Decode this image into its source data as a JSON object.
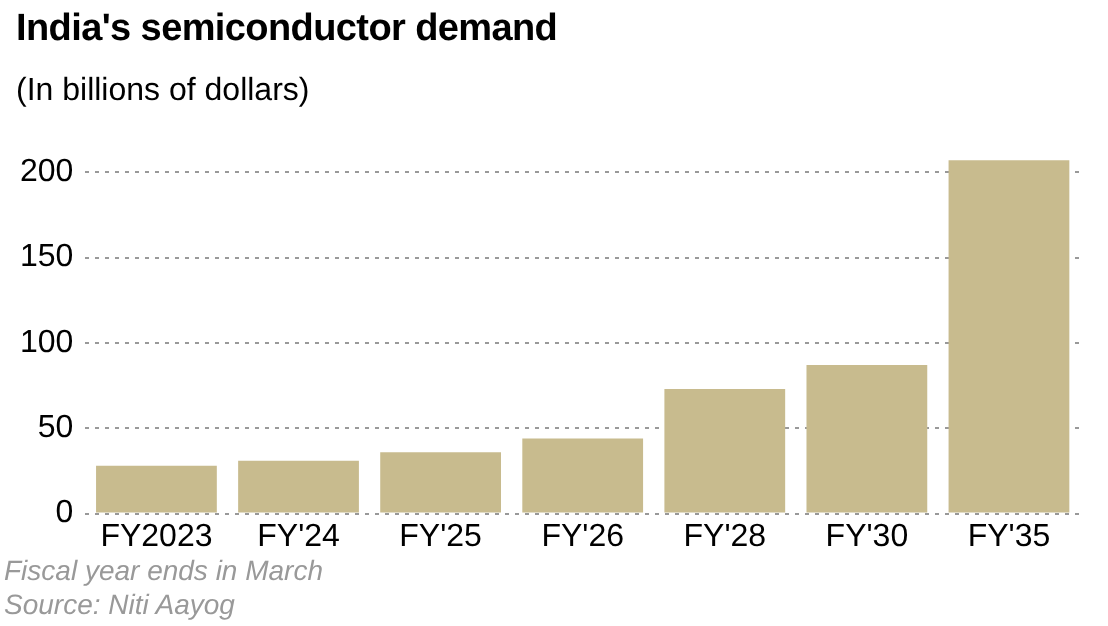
{
  "chart_data": {
    "type": "bar",
    "title": "India's semiconductor demand",
    "subtitle": "(In billions of dollars)",
    "categories": [
      "FY2023",
      "FY'24",
      "FY'25",
      "FY'26",
      "FY'28",
      "FY'30",
      "FY'35"
    ],
    "values": [
      28,
      31,
      36,
      44,
      73,
      87,
      207
    ],
    "color": "#c8bb8e",
    "ylim": [
      0,
      210
    ],
    "yticks": [
      0,
      50,
      100,
      150,
      200
    ],
    "grid": "y",
    "annotations": [
      "Fiscal year ends in March",
      "Source: Niti Aayog"
    ]
  }
}
